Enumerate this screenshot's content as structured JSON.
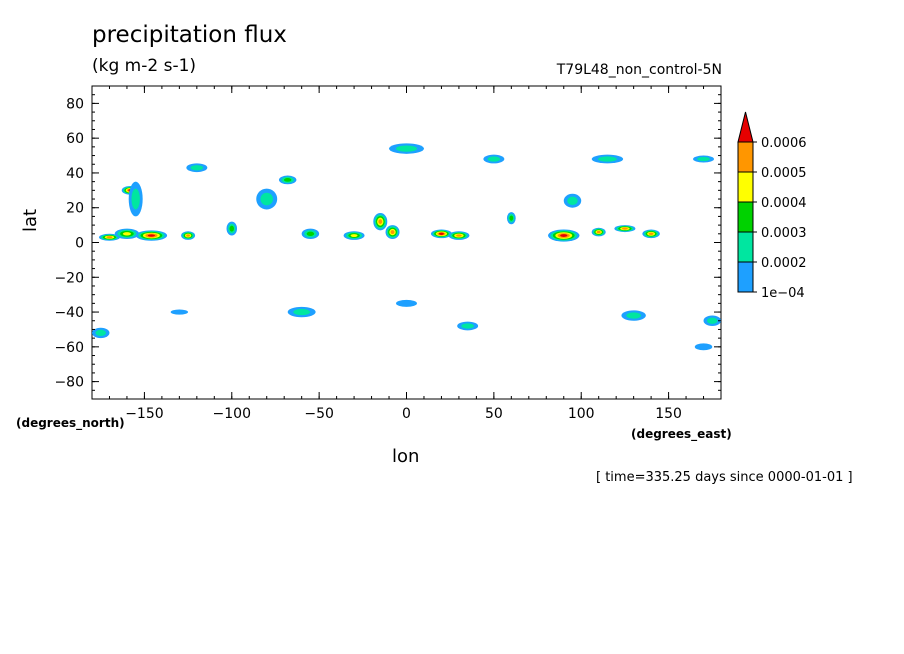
{
  "header": {
    "title": "precipitation flux",
    "units": "(kg m-2 s-1)",
    "run_name": "T79L48_non_control-5N"
  },
  "footer": {
    "time_info": "[ time=335.25 days since 0000-01-01 ]"
  },
  "chart_data": {
    "type": "heatmap",
    "title": "precipitation flux",
    "subtitle": "(kg m-2 s-1)",
    "xlabel": "lon",
    "ylabel": "lat",
    "x_units": "(degrees_east)",
    "y_units": "(degrees_north)",
    "xlim": [
      -180,
      180
    ],
    "ylim": [
      -90,
      90
    ],
    "x_ticks": [
      -150,
      -100,
      -50,
      0,
      50,
      100,
      150
    ],
    "y_ticks": [
      80,
      60,
      40,
      20,
      0,
      -20,
      -40,
      -60,
      -80
    ],
    "colorbar": {
      "levels": [
        "1e-04",
        "0.0002",
        "0.0003",
        "0.0004",
        "0.0005",
        "0.0006"
      ],
      "colors": [
        "#1ea0ff",
        "#00e6a0",
        "#00d200",
        "#ffff00",
        "#ff9600",
        "#e60000"
      ],
      "extend": "max"
    },
    "features": [
      {
        "lon": -170,
        "lat": 3,
        "w": 12,
        "h": 4,
        "level": 5
      },
      {
        "lon": -160,
        "lat": 5,
        "w": 14,
        "h": 6,
        "level": 4
      },
      {
        "lon": -146,
        "lat": 4,
        "w": 18,
        "h": 6,
        "level": 6
      },
      {
        "lon": -158,
        "lat": 30,
        "w": 10,
        "h": 5,
        "level": 6
      },
      {
        "lon": -155,
        "lat": 25,
        "w": 8,
        "h": 20,
        "level": 2
      },
      {
        "lon": -125,
        "lat": 4,
        "w": 8,
        "h": 5,
        "level": 5
      },
      {
        "lon": -120,
        "lat": 43,
        "w": 12,
        "h": 5,
        "level": 2
      },
      {
        "lon": -100,
        "lat": 8,
        "w": 6,
        "h": 8,
        "level": 3
      },
      {
        "lon": -80,
        "lat": 25,
        "w": 12,
        "h": 12,
        "level": 2
      },
      {
        "lon": -68,
        "lat": 36,
        "w": 10,
        "h": 5,
        "level": 3
      },
      {
        "lon": -55,
        "lat": 5,
        "w": 10,
        "h": 6,
        "level": 3
      },
      {
        "lon": -30,
        "lat": 4,
        "w": 12,
        "h": 5,
        "level": 4
      },
      {
        "lon": -15,
        "lat": 12,
        "w": 8,
        "h": 10,
        "level": 5
      },
      {
        "lon": -8,
        "lat": 6,
        "w": 8,
        "h": 8,
        "level": 5
      },
      {
        "lon": 0,
        "lat": 54,
        "w": 20,
        "h": 6,
        "level": 2
      },
      {
        "lon": 20,
        "lat": 5,
        "w": 12,
        "h": 5,
        "level": 6
      },
      {
        "lon": 30,
        "lat": 4,
        "w": 12,
        "h": 5,
        "level": 5
      },
      {
        "lon": 50,
        "lat": 48,
        "w": 12,
        "h": 5,
        "level": 2
      },
      {
        "lon": 60,
        "lat": 14,
        "w": 5,
        "h": 7,
        "level": 3
      },
      {
        "lon": 90,
        "lat": 4,
        "w": 18,
        "h": 7,
        "level": 6
      },
      {
        "lon": 95,
        "lat": 24,
        "w": 10,
        "h": 8,
        "level": 2
      },
      {
        "lon": 110,
        "lat": 6,
        "w": 8,
        "h": 5,
        "level": 5
      },
      {
        "lon": 125,
        "lat": 8,
        "w": 12,
        "h": 4,
        "level": 5
      },
      {
        "lon": 140,
        "lat": 5,
        "w": 10,
        "h": 5,
        "level": 5
      },
      {
        "lon": 115,
        "lat": 48,
        "w": 18,
        "h": 5,
        "level": 2
      },
      {
        "lon": -60,
        "lat": -40,
        "w": 16,
        "h": 6,
        "level": 2
      },
      {
        "lon": 0,
        "lat": -35,
        "w": 12,
        "h": 4,
        "level": 1
      },
      {
        "lon": 35,
        "lat": -48,
        "w": 12,
        "h": 5,
        "level": 2
      },
      {
        "lon": 130,
        "lat": -42,
        "w": 14,
        "h": 6,
        "level": 2
      },
      {
        "lon": 175,
        "lat": -45,
        "w": 10,
        "h": 6,
        "level": 2
      },
      {
        "lon": -175,
        "lat": -52,
        "w": 10,
        "h": 6,
        "level": 2
      },
      {
        "lon": 170,
        "lat": -60,
        "w": 10,
        "h": 4,
        "level": 1
      },
      {
        "lon": -130,
        "lat": -40,
        "w": 10,
        "h": 3,
        "level": 1
      },
      {
        "lon": 170,
        "lat": 48,
        "w": 12,
        "h": 4,
        "level": 2
      }
    ]
  }
}
